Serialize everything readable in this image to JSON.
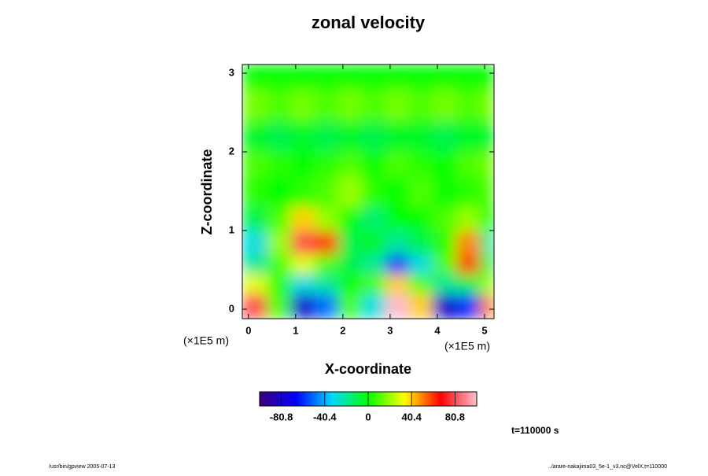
{
  "chart_data": {
    "type": "heatmap",
    "title": "zonal velocity",
    "x_label": "X-coordinate",
    "y_label": "Z-coordinate",
    "x_unit": "(×1E5 m)",
    "y_unit": "(×1E5 m)",
    "time_note": "t=110000 s",
    "footer_left": "/usr/bin/gpview 2005-07-13",
    "footer_right": "../arare-nakajima03_5e-1_v3.nc@VelX,t=110000",
    "xlim": [
      -0.13,
      5.2
    ],
    "ylim": [
      -0.12,
      3.11
    ],
    "xticks": [
      0,
      1,
      2,
      3,
      4,
      5
    ],
    "yticks": [
      0,
      1,
      2,
      3
    ],
    "xbins": [
      -0.13,
      0.4,
      0.9,
      1.4,
      1.9,
      2.4,
      2.9,
      3.4,
      3.9,
      4.4,
      4.9,
      5.2
    ],
    "ybins": [
      -0.12,
      0.2,
      0.45,
      0.7,
      1.0,
      1.3,
      1.7,
      2.0,
      2.4,
      2.8,
      3.11
    ],
    "z": [
      [
        80,
        10,
        -80,
        -50,
        10,
        -30,
        100,
        40,
        -80,
        -60,
        50
      ],
      [
        30,
        5,
        -30,
        -20,
        0,
        10,
        40,
        10,
        -20,
        -10,
        20
      ],
      [
        -20,
        10,
        30,
        10,
        -10,
        -20,
        -60,
        -30,
        10,
        60,
        -10
      ],
      [
        -30,
        20,
        80,
        60,
        -10,
        -5,
        -20,
        -10,
        5,
        50,
        -20
      ],
      [
        -10,
        10,
        40,
        20,
        0,
        -15,
        0,
        0,
        10,
        20,
        0
      ],
      [
        5,
        0,
        5,
        10,
        20,
        5,
        0,
        10,
        0,
        5,
        10
      ],
      [
        10,
        5,
        0,
        5,
        10,
        0,
        10,
        5,
        0,
        10,
        15
      ],
      [
        -5,
        -10,
        -5,
        -10,
        -5,
        -10,
        -5,
        -5,
        -10,
        -5,
        -5
      ],
      [
        15,
        10,
        15,
        10,
        15,
        10,
        15,
        10,
        15,
        10,
        15
      ],
      [
        0,
        0,
        0,
        0,
        0,
        0,
        0,
        0,
        0,
        0,
        0
      ]
    ],
    "clim": [
      -101,
      101
    ],
    "cticks": [
      -80.8,
      -40.4,
      0,
      40.4,
      80.8
    ],
    "colormap": [
      "#3c0078",
      "#0000ff",
      "#00d8ff",
      "#00ff00",
      "#ffff00",
      "#ff0000",
      "#ffc0d0"
    ]
  }
}
